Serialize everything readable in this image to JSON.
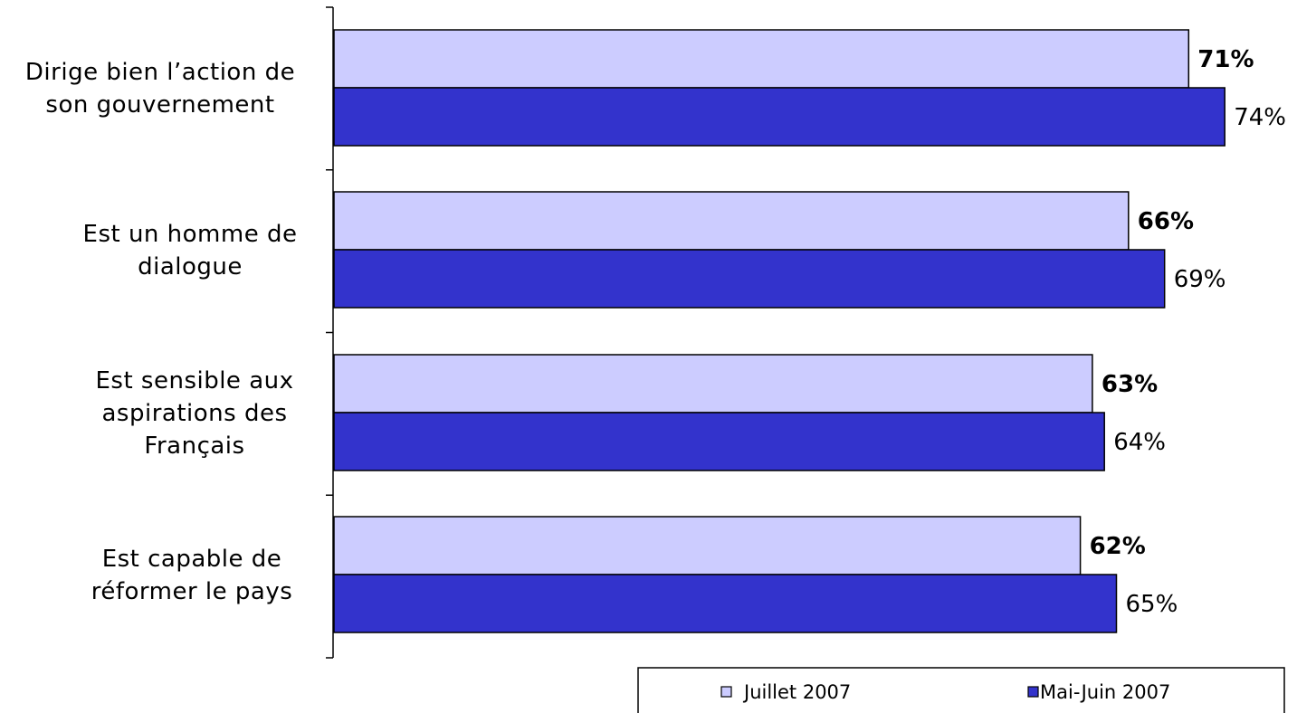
{
  "chart_data": {
    "type": "bar",
    "orientation": "horizontal",
    "categories": [
      [
        "Dirige bien l’action de",
        "son gouvernement"
      ],
      [
        "Est un homme de",
        "dialogue"
      ],
      [
        "Est sensible aux",
        "aspirations des",
        "Français"
      ],
      [
        "Est capable de",
        "réformer le pays"
      ]
    ],
    "series": [
      {
        "name": "Juillet 2007",
        "values": [
          71,
          66,
          63,
          62
        ],
        "labels": [
          "71%",
          "66%",
          "63%",
          "62%"
        ],
        "color": "#ccccff",
        "label_bold": true
      },
      {
        "name": "Mai-Juin 2007",
        "values": [
          74,
          69,
          64,
          65
        ],
        "labels": [
          "74%",
          "69%",
          "64%",
          "65%"
        ],
        "color": "#3333cc",
        "label_bold": false
      }
    ],
    "xlim": [
      0,
      76
    ],
    "grid": false,
    "legend_position": "bottom-right",
    "title": "",
    "xlabel": "",
    "ylabel": ""
  }
}
